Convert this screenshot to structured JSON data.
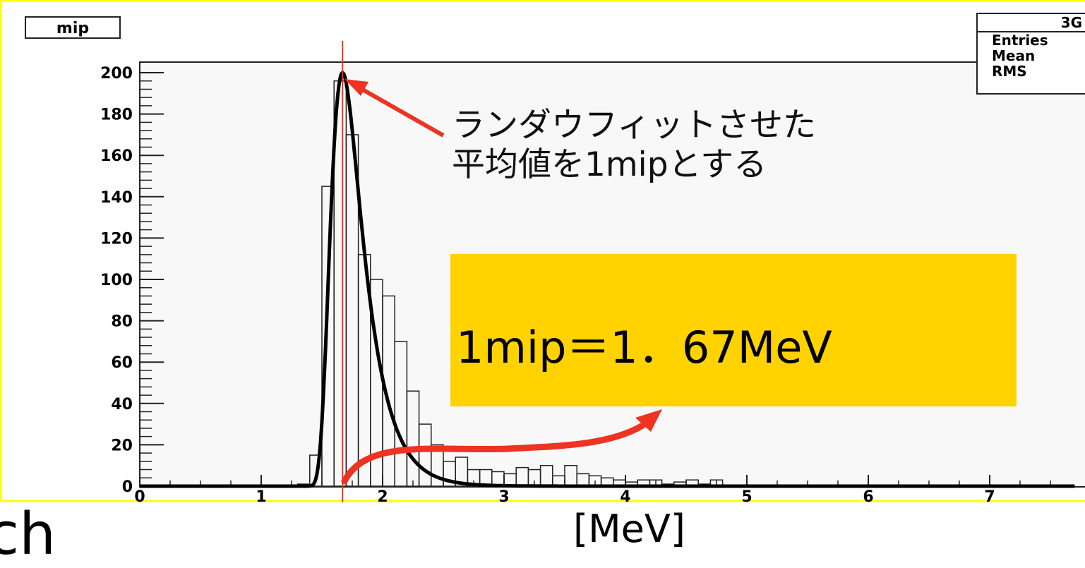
{
  "chart_data": {
    "type": "histogram",
    "title": "mip",
    "xlim": [
      0,
      7.7
    ],
    "ylim": [
      0,
      205
    ],
    "x_ticks": [
      "0",
      "1",
      "2",
      "3",
      "4",
      "5",
      "6",
      "7"
    ],
    "y_ticks": [
      "0",
      "20",
      "40",
      "60",
      "80",
      "100",
      "120",
      "140",
      "160",
      "180",
      "200"
    ],
    "bin_width": 0.1,
    "bins_x0": [
      1.3,
      1.4,
      1.5,
      1.6,
      1.7,
      1.8,
      1.9,
      2.0,
      2.1,
      2.2,
      2.3,
      2.4,
      2.5,
      2.6,
      2.7,
      2.8,
      2.9,
      3.0,
      3.1,
      3.2,
      3.3,
      3.4,
      3.5,
      3.6,
      3.7,
      3.8,
      3.9,
      4.0,
      4.1,
      4.2,
      4.3,
      4.4,
      4.5,
      4.6,
      4.7,
      4.8
    ],
    "bins_y": [
      1,
      15,
      145,
      196,
      170,
      112,
      100,
      92,
      70,
      46,
      30,
      20,
      12,
      14,
      8,
      8,
      7,
      6,
      9,
      8,
      10,
      5,
      10,
      6,
      5,
      4,
      3,
      2,
      3,
      3,
      1,
      2,
      3,
      1,
      3,
      0
    ],
    "fit_curve_name": "Landau fit",
    "peak_marker_x": 1.67,
    "stats_box": {
      "title": "3G",
      "labels": [
        "Entries",
        "Mean",
        "RMS"
      ]
    }
  },
  "annotations": {
    "landau_note_line1": "ランダウフィットさせた",
    "landau_note_line2": "平均値を1mipとする",
    "result": "1mip＝1．67MeV"
  },
  "x_unit_label": "[MeV]",
  "edge_text": "ch",
  "colors": {
    "frame_border": "#ffff00",
    "plot_bg": "#f8f8f8",
    "highlight": "#f8c69a",
    "result_box": "#ffd200",
    "arrow": "#ee3322",
    "marker_line": "#ee3322"
  }
}
